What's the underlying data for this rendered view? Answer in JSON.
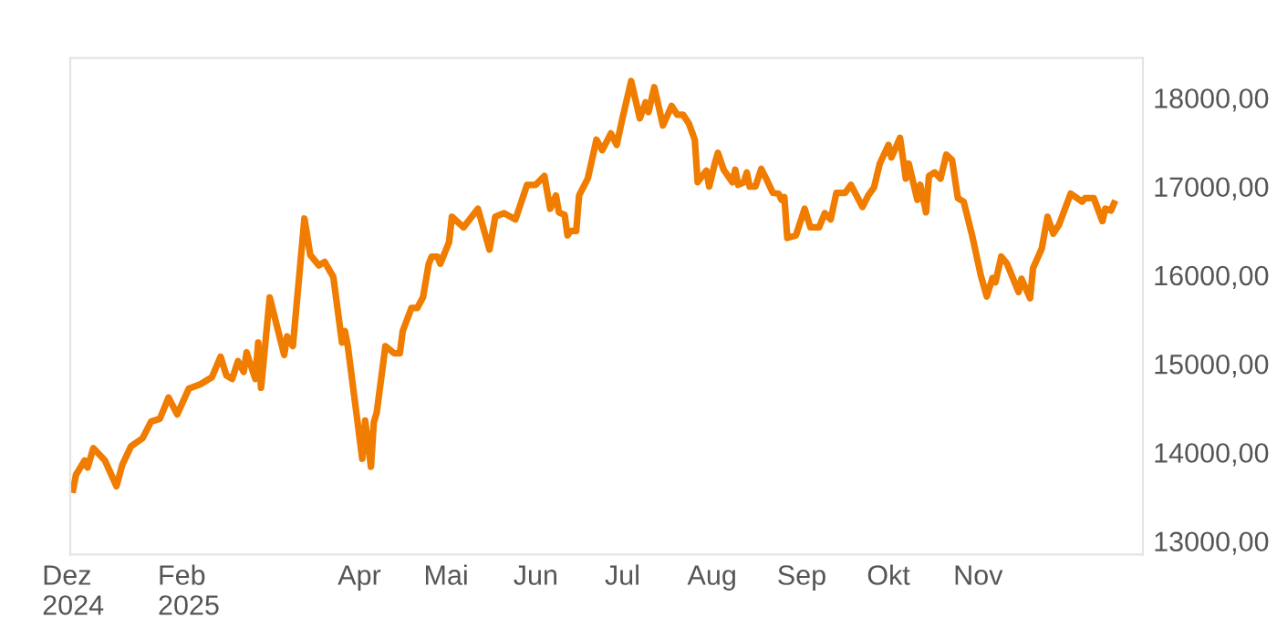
{
  "chart_data": {
    "type": "line",
    "x": [
      "2024-12-23",
      "2024-12-24",
      "2024-12-27",
      "2024-12-28",
      "2024-12-30",
      "2025-01-03",
      "2025-01-07",
      "2025-01-09",
      "2025-01-12",
      "2025-01-16",
      "2025-01-19",
      "2025-01-22",
      "2025-01-25",
      "2025-01-28",
      "2025-02-01",
      "2025-02-05",
      "2025-02-09",
      "2025-02-12",
      "2025-02-14",
      "2025-02-16",
      "2025-02-18",
      "2025-02-20",
      "2025-02-21",
      "2025-02-24",
      "2025-02-25",
      "2025-02-26",
      "2025-03-01",
      "2025-03-06",
      "2025-03-07",
      "2025-03-09",
      "2025-03-13",
      "2025-03-15",
      "2025-03-18",
      "2025-03-20",
      "2025-03-23",
      "2025-03-26",
      "2025-03-27",
      "2025-03-28",
      "2025-04-02",
      "2025-04-03",
      "2025-04-05",
      "2025-04-06",
      "2025-04-07",
      "2025-04-10",
      "2025-04-13",
      "2025-04-15",
      "2025-04-16",
      "2025-04-19",
      "2025-04-21",
      "2025-04-23",
      "2025-04-25",
      "2025-04-26",
      "2025-04-28",
      "2025-04-29",
      "2025-05-02",
      "2025-05-03",
      "2025-05-07",
      "2025-05-12",
      "2025-05-16",
      "2025-05-18",
      "2025-05-21",
      "2025-05-25",
      "2025-05-29",
      "2025-06-01",
      "2025-06-04",
      "2025-06-06",
      "2025-06-08",
      "2025-06-09",
      "2025-06-11",
      "2025-06-12",
      "2025-06-13",
      "2025-06-15",
      "2025-06-16",
      "2025-06-19",
      "2025-06-22",
      "2025-06-24",
      "2025-06-27",
      "2025-06-29",
      "2025-07-01",
      "2025-07-04",
      "2025-07-07",
      "2025-07-09",
      "2025-07-10",
      "2025-07-12",
      "2025-07-15",
      "2025-07-18",
      "2025-07-20",
      "2025-07-22",
      "2025-07-24",
      "2025-07-26",
      "2025-07-27",
      "2025-07-30",
      "2025-07-31",
      "2025-08-02",
      "2025-08-03",
      "2025-08-05",
      "2025-08-08",
      "2025-08-09",
      "2025-08-10",
      "2025-08-12",
      "2025-08-13",
      "2025-08-14",
      "2025-08-16",
      "2025-08-18",
      "2025-08-20",
      "2025-08-22",
      "2025-08-24",
      "2025-08-25",
      "2025-08-26",
      "2025-08-27",
      "2025-08-30",
      "2025-09-02",
      "2025-09-04",
      "2025-09-07",
      "2025-09-09",
      "2025-09-11",
      "2025-09-13",
      "2025-09-16",
      "2025-09-18",
      "2025-09-22",
      "2025-09-24",
      "2025-09-26",
      "2025-09-28",
      "2025-10-01",
      "2025-10-02",
      "2025-10-03",
      "2025-10-05",
      "2025-10-07",
      "2025-10-08",
      "2025-10-11",
      "2025-10-12",
      "2025-10-14",
      "2025-10-15",
      "2025-10-17",
      "2025-10-19",
      "2025-10-21",
      "2025-10-23",
      "2025-10-25",
      "2025-10-27",
      "2025-10-30",
      "2025-11-02",
      "2025-11-04",
      "2025-11-06",
      "2025-11-07",
      "2025-11-09",
      "2025-11-11",
      "2025-11-15",
      "2025-11-16",
      "2025-11-19",
      "2025-11-20",
      "2025-11-23",
      "2025-11-25",
      "2025-11-27",
      "2025-11-29",
      "2025-12-03",
      "2025-12-07",
      "2025-12-08",
      "2025-12-11",
      "2025-12-14",
      "2025-12-15",
      "2025-12-17",
      "2025-12-18"
    ],
    "series": [
      {
        "color": "#f07c00",
        "values": [
          13580,
          13750,
          13910,
          13830,
          14050,
          13910,
          13620,
          13860,
          14070,
          14160,
          14350,
          14380,
          14620,
          14430,
          14720,
          14770,
          14850,
          15080,
          14870,
          14830,
          15030,
          14910,
          15130,
          14830,
          15240,
          14730,
          15750,
          15100,
          15310,
          15200,
          16640,
          16230,
          16110,
          16150,
          15980,
          15240,
          15370,
          15200,
          13930,
          14360,
          13840,
          14340,
          14450,
          15200,
          15120,
          15120,
          15370,
          15630,
          15630,
          15750,
          16130,
          16210,
          16210,
          16130,
          16370,
          16660,
          16540,
          16750,
          16290,
          16660,
          16700,
          16630,
          17020,
          17020,
          17120,
          16750,
          16900,
          16710,
          16680,
          16450,
          16500,
          16500,
          16900,
          17090,
          17530,
          17410,
          17600,
          17470,
          17770,
          18190,
          17770,
          17950,
          17840,
          18120,
          17690,
          17910,
          17810,
          17810,
          17710,
          17530,
          17050,
          17180,
          17000,
          17270,
          17380,
          17190,
          17050,
          17190,
          17020,
          17050,
          17160,
          17000,
          17000,
          17200,
          17070,
          16930,
          16920,
          16850,
          16880,
          16420,
          16450,
          16750,
          16540,
          16540,
          16700,
          16630,
          16930,
          16930,
          17020,
          16770,
          16900,
          16990,
          17260,
          17470,
          17330,
          17400,
          17550,
          17090,
          17260,
          16850,
          17020,
          16710,
          17120,
          17160,
          17090,
          17360,
          17300,
          16870,
          16830,
          16440,
          15990,
          15760,
          15970,
          15920,
          16210,
          16130,
          15810,
          15960,
          15740,
          16080,
          16300,
          16660,
          16470,
          16570,
          16920,
          16830,
          16870,
          16870,
          16610,
          16750,
          16730,
          16810
        ]
      }
    ],
    "xlim": [
      "2024-12-22",
      "2025-12-28"
    ],
    "xticks": [
      {
        "value": "2024-12-23",
        "label": "Dez\n2024"
      },
      {
        "value": "2025-02-01",
        "label": "Feb\n2025"
      },
      {
        "value": "2025-04-01",
        "label": "Apr"
      },
      {
        "value": "2025-05-01",
        "label": "Mai"
      },
      {
        "value": "2025-06-01",
        "label": "Jun"
      },
      {
        "value": "2025-07-01",
        "label": "Jul"
      },
      {
        "value": "2025-08-01",
        "label": "Aug"
      },
      {
        "value": "2025-09-01",
        "label": "Sep"
      },
      {
        "value": "2025-10-01",
        "label": "Okt"
      },
      {
        "value": "2025-11-01",
        "label": "Nov"
      }
    ],
    "ylim": [
      12850,
      18450
    ],
    "yticks": [
      {
        "value": 13000,
        "label": "13000,00"
      },
      {
        "value": 14000,
        "label": "14000,00"
      },
      {
        "value": 15000,
        "label": "15000,00"
      },
      {
        "value": 16000,
        "label": "16000,00"
      },
      {
        "value": 17000,
        "label": "17000,00"
      },
      {
        "value": 18000,
        "label": "18000,00"
      }
    ],
    "grid": false,
    "marker": "none",
    "line_style": "solid"
  }
}
